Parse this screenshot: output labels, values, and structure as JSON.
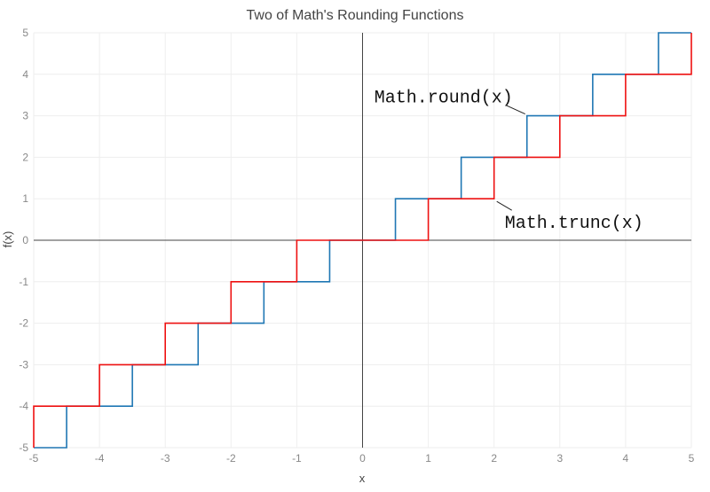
{
  "chart_data": {
    "type": "line",
    "title": "Two of Math's Rounding Functions",
    "xlabel": "x",
    "ylabel": "f(x)",
    "xlim": [
      -5,
      5
    ],
    "ylim": [
      -5,
      5
    ],
    "xticks": [
      "-5",
      "-4",
      "-3",
      "-2",
      "-1",
      "0",
      "1",
      "2",
      "3",
      "4",
      "5"
    ],
    "yticks": [
      "-5",
      "-4",
      "-3",
      "-2",
      "-1",
      "0",
      "1",
      "2",
      "3",
      "4",
      "5"
    ],
    "grid": true,
    "line_shape": "hv",
    "series": [
      {
        "name": "Math.round(x)",
        "color": "#1f77b4",
        "x": [
          -5,
          -4.5,
          -3.5,
          -2.5,
          -1.5,
          -0.5,
          0.5,
          1.5,
          2.5,
          3.5,
          4.5,
          5
        ],
        "y": [
          -5,
          -4,
          -3,
          -2,
          -1,
          0,
          1,
          2,
          3,
          4,
          5,
          5
        ]
      },
      {
        "name": "Math.trunc(x)",
        "color": "#ee1111",
        "x": [
          -5,
          -5,
          -4,
          -3,
          -2,
          -1,
          1,
          2,
          3,
          4,
          5
        ],
        "y": [
          -5,
          -4,
          -3,
          -2,
          -1,
          0,
          1,
          2,
          3,
          4,
          5
        ]
      }
    ],
    "annotations": [
      {
        "text": "Math.round(x)",
        "x": 2.5,
        "y": 3
      },
      {
        "text": "Math.trunc(x)",
        "x": 2,
        "y": 1
      }
    ]
  }
}
